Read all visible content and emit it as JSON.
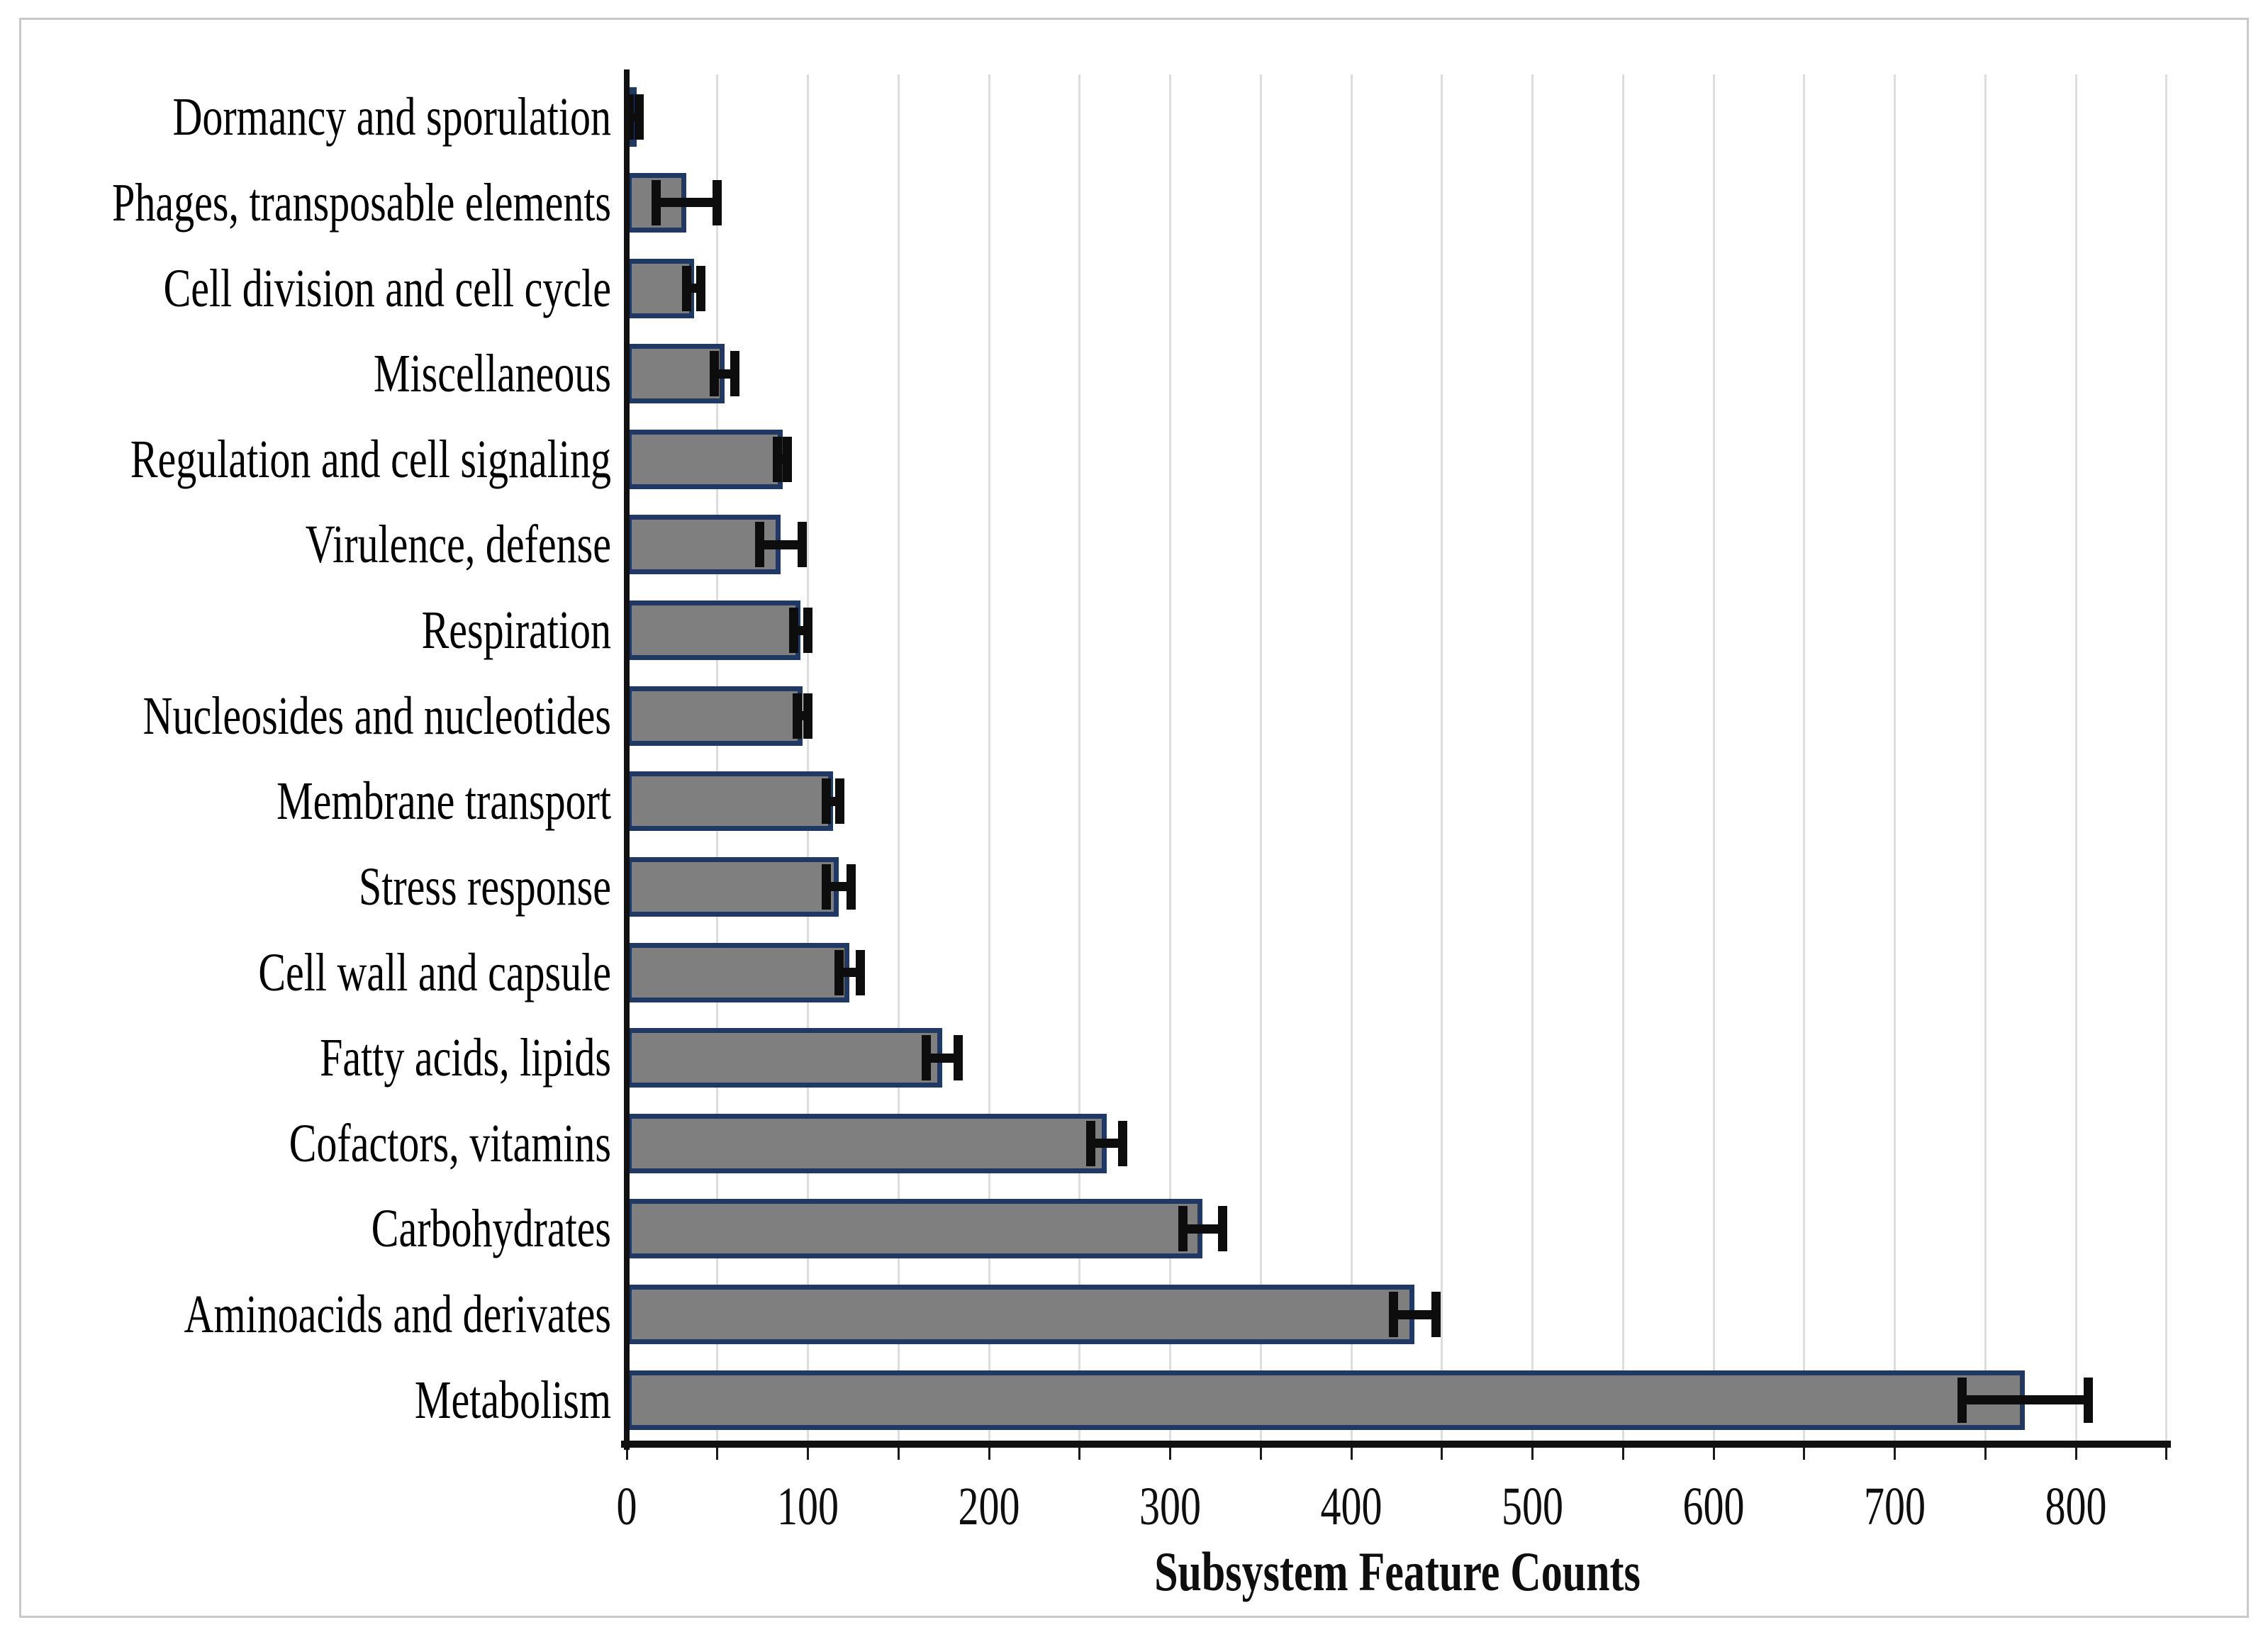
{
  "figure": {
    "background": "#ffffff",
    "border_color": "#c9c9c9"
  },
  "chart_data": {
    "type": "bar",
    "orientation": "horizontal",
    "title": "",
    "xlabel": "Subsystem Feature Counts",
    "ylabel": "",
    "xlim": [
      0,
      850
    ],
    "x_ticks": [
      "0",
      "100",
      "200",
      "300",
      "400",
      "500",
      "600",
      "700",
      "800"
    ],
    "x_tick_values": [
      0,
      100,
      200,
      300,
      400,
      500,
      600,
      700,
      800
    ],
    "gridline_interval": 50,
    "grid": true,
    "legend": "none",
    "bar_fill": "#7f7f7f",
    "bar_border": "#203864",
    "error_color": "#0d0d0d",
    "categories": [
      "Dormancy and sporulation",
      "Phages, transposable elements",
      "Cell division and cell cycle",
      "Miscellaneous",
      "Regulation and cell signaling",
      "Virulence, defense",
      "Respiration",
      "Nucleosides and nucleotides",
      "Membrane transport",
      "Stress response",
      "Cell wall and capsule",
      "Fatty acids, lipids",
      "Cofactors, vitamins",
      "Carbohydrates",
      "Aminoacids and derivates",
      "Metabolism"
    ],
    "values": [
      4,
      33,
      37,
      54,
      86,
      85,
      96,
      97,
      114,
      117,
      123,
      174,
      265,
      318,
      435,
      772
    ],
    "errors": [
      3,
      17,
      4,
      6,
      3,
      12,
      4,
      3,
      4,
      7,
      6,
      9,
      9,
      11,
      12,
      35
    ]
  }
}
